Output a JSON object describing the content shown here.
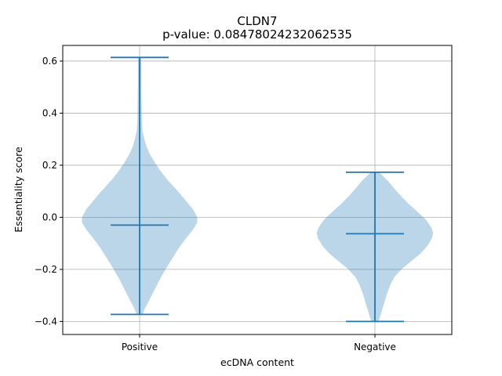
{
  "chart_data": {
    "type": "violin",
    "title": "CLDN7",
    "subtitle": "p-value: 0.08478024232062535",
    "xlabel": "ecDNA content",
    "ylabel": "Essentiality score",
    "categories": [
      "Positive",
      "Negative"
    ],
    "ylim": [
      -0.45,
      0.66
    ],
    "yticks": [
      -0.4,
      -0.2,
      0.0,
      0.2,
      0.4,
      0.6
    ],
    "ytick_labels": [
      "−0.4",
      "−0.2",
      "0.0",
      "0.2",
      "0.4",
      "0.6"
    ],
    "grid": true,
    "colors": {
      "body": "#1f77b4",
      "body_alpha": 0.3,
      "lines": "#1f77b4"
    },
    "violins": [
      {
        "category": "Positive",
        "min": -0.373,
        "max": 0.614,
        "median": -0.03,
        "density": [
          [
            -0.373,
            0.05
          ],
          [
            -0.35,
            0.09
          ],
          [
            -0.32,
            0.16
          ],
          [
            -0.28,
            0.25
          ],
          [
            -0.24,
            0.34
          ],
          [
            -0.2,
            0.44
          ],
          [
            -0.16,
            0.55
          ],
          [
            -0.12,
            0.66
          ],
          [
            -0.08,
            0.79
          ],
          [
            -0.05,
            0.9
          ],
          [
            -0.02,
            0.98
          ],
          [
            0.0,
            0.98
          ],
          [
            0.03,
            0.91
          ],
          [
            0.06,
            0.8
          ],
          [
            0.09,
            0.69
          ],
          [
            0.12,
            0.57
          ],
          [
            0.15,
            0.45
          ],
          [
            0.18,
            0.35
          ],
          [
            0.21,
            0.26
          ],
          [
            0.24,
            0.18
          ],
          [
            0.27,
            0.12
          ],
          [
            0.3,
            0.08
          ],
          [
            0.33,
            0.05
          ],
          [
            0.36,
            0.04
          ],
          [
            0.42,
            0.035
          ],
          [
            0.5,
            0.03
          ],
          [
            0.58,
            0.03
          ],
          [
            0.614,
            0.025
          ]
        ]
      },
      {
        "category": "Negative",
        "min": -0.4,
        "max": 0.173,
        "median": -0.063,
        "density": [
          [
            -0.4,
            0.06
          ],
          [
            -0.38,
            0.09
          ],
          [
            -0.35,
            0.13
          ],
          [
            -0.32,
            0.17
          ],
          [
            -0.29,
            0.21
          ],
          [
            -0.26,
            0.26
          ],
          [
            -0.23,
            0.33
          ],
          [
            -0.2,
            0.45
          ],
          [
            -0.17,
            0.61
          ],
          [
            -0.14,
            0.77
          ],
          [
            -0.11,
            0.89
          ],
          [
            -0.08,
            0.97
          ],
          [
            -0.06,
            0.99
          ],
          [
            -0.04,
            0.96
          ],
          [
            -0.01,
            0.87
          ],
          [
            0.02,
            0.73
          ],
          [
            0.05,
            0.58
          ],
          [
            0.08,
            0.45
          ],
          [
            0.11,
            0.33
          ],
          [
            0.14,
            0.22
          ],
          [
            0.16,
            0.13
          ],
          [
            0.173,
            0.07
          ]
        ]
      }
    ]
  }
}
